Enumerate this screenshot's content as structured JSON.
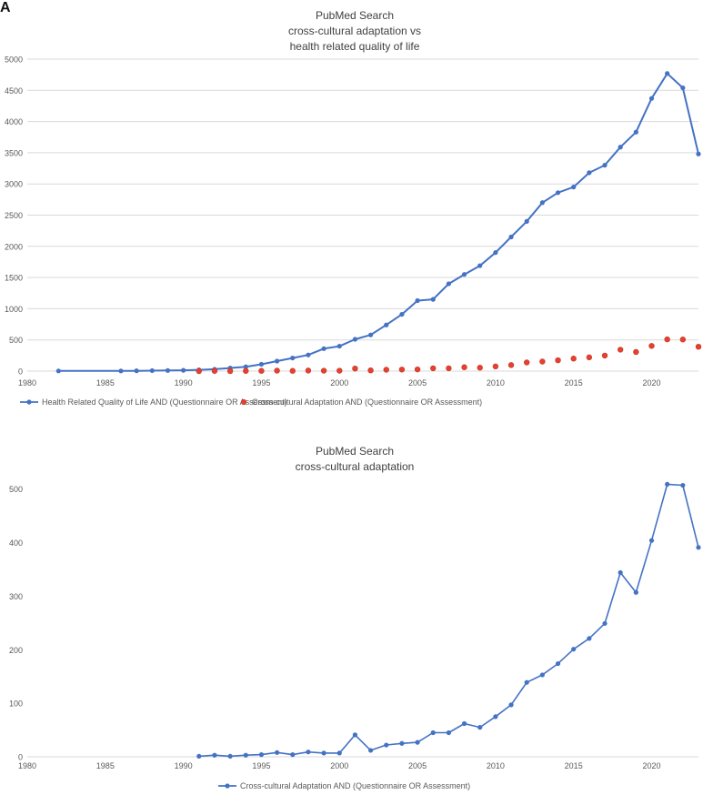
{
  "panel_label": "A",
  "chart_data": [
    {
      "type": "line",
      "title": "PubMed Search",
      "subtitle": [
        "cross-cultural adaptation vs",
        "health related quality of life"
      ],
      "xlabel": "",
      "ylabel": "",
      "xlim": [
        1980,
        2023
      ],
      "ylim": [
        0,
        5000
      ],
      "x_ticks": [
        "1980",
        "1985",
        "1990",
        "1995",
        "2000",
        "2005",
        "2010",
        "2015",
        "2020"
      ],
      "y_ticks": [
        "0",
        "500",
        "1000",
        "1500",
        "2000",
        "2500",
        "3000",
        "3500",
        "4000",
        "4500",
        "5000"
      ],
      "grid": true,
      "legend_position": "bottom",
      "series": [
        {
          "name": "Health Related Quality of Life AND (Questionnaire OR Assessment)",
          "style": "line-markers",
          "color": "#4472c4",
          "x": [
            1982,
            1986,
            1987,
            1988,
            1989,
            1990,
            1991,
            1992,
            1993,
            1994,
            1995,
            1996,
            1997,
            1998,
            1999,
            2000,
            2001,
            2002,
            2003,
            2004,
            2005,
            2006,
            2007,
            2008,
            2009,
            2010,
            2011,
            2012,
            2013,
            2014,
            2015,
            2016,
            2017,
            2018,
            2019,
            2020,
            2021,
            2022,
            2023
          ],
          "y": [
            3,
            3,
            5,
            8,
            10,
            13,
            20,
            30,
            50,
            70,
            110,
            160,
            210,
            260,
            360,
            400,
            510,
            580,
            740,
            910,
            1130,
            1150,
            1400,
            1550,
            1690,
            1900,
            2150,
            2400,
            2700,
            2860,
            2950,
            3180,
            3300,
            3590,
            3830,
            4370,
            4770,
            4540,
            3480
          ]
        },
        {
          "name": "Cross-cultural Adaptation AND (Questionnaire OR Assessment)",
          "style": "markers",
          "color": "#e8402e",
          "x": [
            1991,
            1992,
            1993,
            1994,
            1995,
            1996,
            1997,
            1998,
            1999,
            2000,
            2001,
            2002,
            2003,
            2004,
            2005,
            2006,
            2007,
            2008,
            2009,
            2010,
            2011,
            2012,
            2013,
            2014,
            2015,
            2016,
            2017,
            2018,
            2019,
            2020,
            2021,
            2022,
            2023
          ],
          "y": [
            1,
            3,
            1,
            3,
            4,
            8,
            4,
            9,
            7,
            7,
            41,
            12,
            22,
            25,
            27,
            45,
            45,
            62,
            55,
            75,
            97,
            139,
            153,
            174,
            201,
            221,
            249,
            344,
            307,
            404,
            509,
            507,
            391
          ]
        }
      ]
    },
    {
      "type": "line",
      "title": "PubMed Search",
      "subtitle": [
        "cross-cultural adaptation"
      ],
      "xlabel": "",
      "ylabel": "",
      "xlim": [
        1980,
        2023
      ],
      "ylim": [
        0,
        530
      ],
      "x_ticks": [
        "1980",
        "1985",
        "1990",
        "1995",
        "2000",
        "2005",
        "2010",
        "2015",
        "2020"
      ],
      "y_ticks": [
        "0",
        "100",
        "200",
        "300",
        "400",
        "500"
      ],
      "grid": false,
      "legend_position": "bottom",
      "series": [
        {
          "name": "Cross-cultural Adaptation AND (Questionnaire OR Assessment)",
          "style": "line-markers",
          "color": "#4472c4",
          "x": [
            1991,
            1992,
            1993,
            1994,
            1995,
            1996,
            1997,
            1998,
            1999,
            2000,
            2001,
            2002,
            2003,
            2004,
            2005,
            2006,
            2007,
            2008,
            2009,
            2010,
            2011,
            2012,
            2013,
            2014,
            2015,
            2016,
            2017,
            2018,
            2019,
            2020,
            2021,
            2022,
            2023
          ],
          "y": [
            1,
            3,
            1,
            3,
            4,
            8,
            4,
            9,
            7,
            7,
            41,
            12,
            22,
            25,
            27,
            45,
            45,
            62,
            55,
            75,
            97,
            139,
            153,
            174,
            201,
            221,
            249,
            344,
            307,
            404,
            509,
            507,
            391
          ]
        }
      ]
    }
  ]
}
